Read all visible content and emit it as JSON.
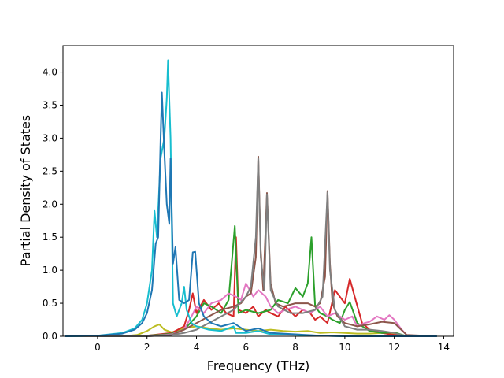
{
  "chart_data": {
    "type": "line",
    "title": "",
    "xlabel": "Frequency (THz)",
    "ylabel": "Partial Density of States",
    "xlim": [
      -1.4,
      14.4
    ],
    "ylim": [
      0.0,
      4.4
    ],
    "xticks": [
      0,
      2,
      4,
      6,
      8,
      10,
      12,
      14
    ],
    "yticks": [
      0.0,
      0.5,
      1.0,
      1.5,
      2.0,
      2.5,
      3.0,
      3.5,
      4.0
    ],
    "xtick_labels": [
      "0",
      "2",
      "4",
      "6",
      "8",
      "10",
      "12",
      "14"
    ],
    "ytick_labels": [
      "0.0",
      "0.5",
      "1.0",
      "1.5",
      "2.0",
      "2.5",
      "3.0",
      "3.5",
      "4.0"
    ],
    "grid": false,
    "series": [
      {
        "color": "#bcbd22",
        "points": [
          [
            -1.3,
            0
          ],
          [
            1.0,
            0
          ],
          [
            1.6,
            0.02
          ],
          [
            2.0,
            0.08
          ],
          [
            2.3,
            0.15
          ],
          [
            2.5,
            0.18
          ],
          [
            2.7,
            0.1
          ],
          [
            3.0,
            0.06
          ],
          [
            3.5,
            0.12
          ],
          [
            4.0,
            0.15
          ],
          [
            4.5,
            0.12
          ],
          [
            5.0,
            0.1
          ],
          [
            5.5,
            0.12
          ],
          [
            6.0,
            0.1
          ],
          [
            6.5,
            0.08
          ],
          [
            7.0,
            0.1
          ],
          [
            7.5,
            0.08
          ],
          [
            8.0,
            0.07
          ],
          [
            8.5,
            0.08
          ],
          [
            9.0,
            0.05
          ],
          [
            9.5,
            0.06
          ],
          [
            10.0,
            0.05
          ],
          [
            10.5,
            0.04
          ],
          [
            11.0,
            0.04
          ],
          [
            11.5,
            0.05
          ],
          [
            12.0,
            0.03
          ],
          [
            12.5,
            0.0
          ],
          [
            13.7,
            0
          ]
        ]
      },
      {
        "color": "#d62728",
        "points": [
          [
            -1.3,
            0
          ],
          [
            1.5,
            0
          ],
          [
            2.0,
            0.01
          ],
          [
            3.0,
            0.05
          ],
          [
            3.5,
            0.15
          ],
          [
            3.7,
            0.4
          ],
          [
            3.85,
            0.65
          ],
          [
            4.0,
            0.35
          ],
          [
            4.3,
            0.55
          ],
          [
            4.6,
            0.4
          ],
          [
            4.9,
            0.5
          ],
          [
            5.2,
            0.35
          ],
          [
            5.5,
            0.3
          ],
          [
            5.6,
            1.5
          ],
          [
            5.7,
            0.4
          ],
          [
            6.0,
            0.35
          ],
          [
            6.3,
            0.45
          ],
          [
            6.5,
            0.3
          ],
          [
            6.8,
            0.4
          ],
          [
            7.0,
            0.35
          ],
          [
            7.3,
            0.3
          ],
          [
            7.6,
            0.45
          ],
          [
            8.0,
            0.3
          ],
          [
            8.3,
            0.4
          ],
          [
            8.6,
            0.35
          ],
          [
            8.8,
            0.25
          ],
          [
            9.0,
            0.3
          ],
          [
            9.3,
            0.2
          ],
          [
            9.6,
            0.7
          ],
          [
            10.0,
            0.5
          ],
          [
            10.2,
            0.87
          ],
          [
            10.4,
            0.6
          ],
          [
            10.7,
            0.2
          ],
          [
            11.0,
            0.1
          ],
          [
            11.5,
            0.05
          ],
          [
            12.0,
            0.02
          ],
          [
            12.5,
            0
          ],
          [
            13.7,
            0
          ]
        ]
      },
      {
        "color": "#2ca02c",
        "points": [
          [
            -1.3,
            0
          ],
          [
            1.5,
            0
          ],
          [
            2.5,
            0.02
          ],
          [
            3.0,
            0.04
          ],
          [
            3.5,
            0.1
          ],
          [
            4.0,
            0.3
          ],
          [
            4.3,
            0.5
          ],
          [
            4.6,
            0.45
          ],
          [
            5.0,
            0.35
          ],
          [
            5.3,
            0.55
          ],
          [
            5.55,
            1.67
          ],
          [
            5.7,
            0.35
          ],
          [
            6.0,
            0.4
          ],
          [
            6.5,
            0.35
          ],
          [
            7.0,
            0.4
          ],
          [
            7.3,
            0.55
          ],
          [
            7.7,
            0.5
          ],
          [
            8.0,
            0.73
          ],
          [
            8.3,
            0.6
          ],
          [
            8.5,
            0.8
          ],
          [
            8.65,
            1.5
          ],
          [
            8.8,
            0.45
          ],
          [
            9.0,
            0.35
          ],
          [
            9.3,
            0.3
          ],
          [
            9.5,
            0.25
          ],
          [
            9.8,
            0.2
          ],
          [
            10.0,
            0.4
          ],
          [
            10.2,
            0.52
          ],
          [
            10.5,
            0.2
          ],
          [
            11.0,
            0.08
          ],
          [
            11.5,
            0.05
          ],
          [
            12.0,
            0.06
          ],
          [
            12.5,
            0
          ],
          [
            13.7,
            0
          ]
        ]
      },
      {
        "color": "#e377c2",
        "points": [
          [
            -1.3,
            0
          ],
          [
            2.0,
            0
          ],
          [
            3.0,
            0.03
          ],
          [
            3.5,
            0.1
          ],
          [
            3.8,
            0.3
          ],
          [
            4.0,
            0.45
          ],
          [
            4.3,
            0.35
          ],
          [
            4.6,
            0.5
          ],
          [
            5.0,
            0.55
          ],
          [
            5.3,
            0.65
          ],
          [
            5.6,
            0.6
          ],
          [
            5.8,
            0.55
          ],
          [
            6.0,
            0.8
          ],
          [
            6.3,
            0.6
          ],
          [
            6.5,
            0.7
          ],
          [
            6.8,
            0.6
          ],
          [
            7.0,
            0.45
          ],
          [
            7.3,
            0.35
          ],
          [
            7.6,
            0.4
          ],
          [
            8.0,
            0.45
          ],
          [
            8.3,
            0.4
          ],
          [
            8.6,
            0.35
          ],
          [
            9.0,
            0.45
          ],
          [
            9.3,
            0.3
          ],
          [
            9.6,
            0.35
          ],
          [
            10.0,
            0.25
          ],
          [
            10.3,
            0.3
          ],
          [
            10.5,
            0.15
          ],
          [
            10.8,
            0.2
          ],
          [
            11.0,
            0.22
          ],
          [
            11.3,
            0.3
          ],
          [
            11.6,
            0.25
          ],
          [
            11.8,
            0.32
          ],
          [
            12.0,
            0.25
          ],
          [
            12.3,
            0.1
          ],
          [
            12.5,
            0.02
          ],
          [
            12.6,
            0
          ],
          [
            13.7,
            0
          ]
        ]
      },
      {
        "color": "#8c564b",
        "points": [
          [
            -1.3,
            0
          ],
          [
            2.0,
            0
          ],
          [
            3.0,
            0.02
          ],
          [
            3.5,
            0.1
          ],
          [
            4.0,
            0.2
          ],
          [
            4.5,
            0.3
          ],
          [
            5.0,
            0.4
          ],
          [
            5.5,
            0.45
          ],
          [
            5.8,
            0.5
          ],
          [
            6.0,
            0.6
          ],
          [
            6.2,
            0.65
          ],
          [
            6.4,
            1.2
          ],
          [
            6.5,
            2.72
          ],
          [
            6.6,
            1.3
          ],
          [
            6.7,
            0.7
          ],
          [
            6.85,
            2.17
          ],
          [
            7.0,
            0.8
          ],
          [
            7.2,
            0.5
          ],
          [
            7.5,
            0.45
          ],
          [
            8.0,
            0.5
          ],
          [
            8.5,
            0.5
          ],
          [
            8.8,
            0.45
          ],
          [
            9.0,
            0.5
          ],
          [
            9.2,
            0.9
          ],
          [
            9.3,
            2.2
          ],
          [
            9.4,
            1.1
          ],
          [
            9.5,
            0.5
          ],
          [
            9.7,
            0.3
          ],
          [
            10.0,
            0.2
          ],
          [
            10.5,
            0.15
          ],
          [
            11.0,
            0.18
          ],
          [
            11.5,
            0.22
          ],
          [
            12.0,
            0.2
          ],
          [
            12.5,
            0.02
          ],
          [
            13.7,
            0
          ]
        ]
      },
      {
        "color": "#7f7f7f",
        "points": [
          [
            -1.3,
            0
          ],
          [
            2.0,
            0
          ],
          [
            3.0,
            0.02
          ],
          [
            3.5,
            0.05
          ],
          [
            4.0,
            0.1
          ],
          [
            4.5,
            0.2
          ],
          [
            5.0,
            0.3
          ],
          [
            5.5,
            0.4
          ],
          [
            6.0,
            0.6
          ],
          [
            6.2,
            0.75
          ],
          [
            6.4,
            1.5
          ],
          [
            6.5,
            2.7
          ],
          [
            6.6,
            1.2
          ],
          [
            6.75,
            0.7
          ],
          [
            6.85,
            2.15
          ],
          [
            7.0,
            0.7
          ],
          [
            7.3,
            0.45
          ],
          [
            7.8,
            0.35
          ],
          [
            8.3,
            0.35
          ],
          [
            8.8,
            0.4
          ],
          [
            9.1,
            0.6
          ],
          [
            9.3,
            2.18
          ],
          [
            9.4,
            1.0
          ],
          [
            9.6,
            0.4
          ],
          [
            10.0,
            0.15
          ],
          [
            10.5,
            0.1
          ],
          [
            11.0,
            0.1
          ],
          [
            11.5,
            0.08
          ],
          [
            12.0,
            0.05
          ],
          [
            12.5,
            0
          ],
          [
            13.7,
            0
          ]
        ]
      },
      {
        "color": "#17becf",
        "points": [
          [
            -1.3,
            0
          ],
          [
            0.0,
            0.01
          ],
          [
            1.0,
            0.05
          ],
          [
            1.5,
            0.12
          ],
          [
            1.8,
            0.25
          ],
          [
            2.0,
            0.5
          ],
          [
            2.2,
            1.0
          ],
          [
            2.3,
            1.9
          ],
          [
            2.4,
            1.5
          ],
          [
            2.55,
            2.7
          ],
          [
            2.7,
            3.0
          ],
          [
            2.8,
            3.6
          ],
          [
            2.85,
            4.18
          ],
          [
            2.95,
            3.0
          ],
          [
            3.05,
            0.5
          ],
          [
            3.2,
            0.3
          ],
          [
            3.4,
            0.5
          ],
          [
            3.5,
            0.75
          ],
          [
            3.6,
            0.4
          ],
          [
            3.8,
            0.2
          ],
          [
            4.0,
            0.15
          ],
          [
            4.5,
            0.1
          ],
          [
            5.0,
            0.08
          ],
          [
            5.5,
            0.15
          ],
          [
            5.6,
            0.05
          ],
          [
            6.0,
            0.05
          ],
          [
            6.5,
            0.08
          ],
          [
            7.0,
            0.03
          ],
          [
            8.0,
            0.02
          ],
          [
            9.0,
            0.01
          ],
          [
            10.0,
            0
          ],
          [
            13.7,
            0
          ]
        ]
      },
      {
        "color": "#1f77b4",
        "points": [
          [
            -1.3,
            0
          ],
          [
            0.0,
            0.01
          ],
          [
            1.0,
            0.04
          ],
          [
            1.5,
            0.1
          ],
          [
            1.8,
            0.2
          ],
          [
            2.0,
            0.35
          ],
          [
            2.2,
            0.7
          ],
          [
            2.35,
            1.4
          ],
          [
            2.45,
            1.5
          ],
          [
            2.55,
            3.0
          ],
          [
            2.6,
            3.69
          ],
          [
            2.7,
            2.8
          ],
          [
            2.8,
            2.0
          ],
          [
            2.9,
            1.7
          ],
          [
            2.95,
            2.69
          ],
          [
            3.05,
            1.1
          ],
          [
            3.15,
            1.35
          ],
          [
            3.3,
            0.55
          ],
          [
            3.5,
            0.5
          ],
          [
            3.7,
            0.55
          ],
          [
            3.85,
            1.27
          ],
          [
            3.95,
            1.28
          ],
          [
            4.1,
            0.5
          ],
          [
            4.3,
            0.3
          ],
          [
            4.6,
            0.2
          ],
          [
            5.0,
            0.15
          ],
          [
            5.5,
            0.2
          ],
          [
            6.0,
            0.08
          ],
          [
            6.5,
            0.12
          ],
          [
            7.0,
            0.05
          ],
          [
            8.0,
            0.03
          ],
          [
            9.0,
            0.01
          ],
          [
            10.0,
            0
          ],
          [
            13.7,
            0
          ]
        ]
      }
    ]
  }
}
